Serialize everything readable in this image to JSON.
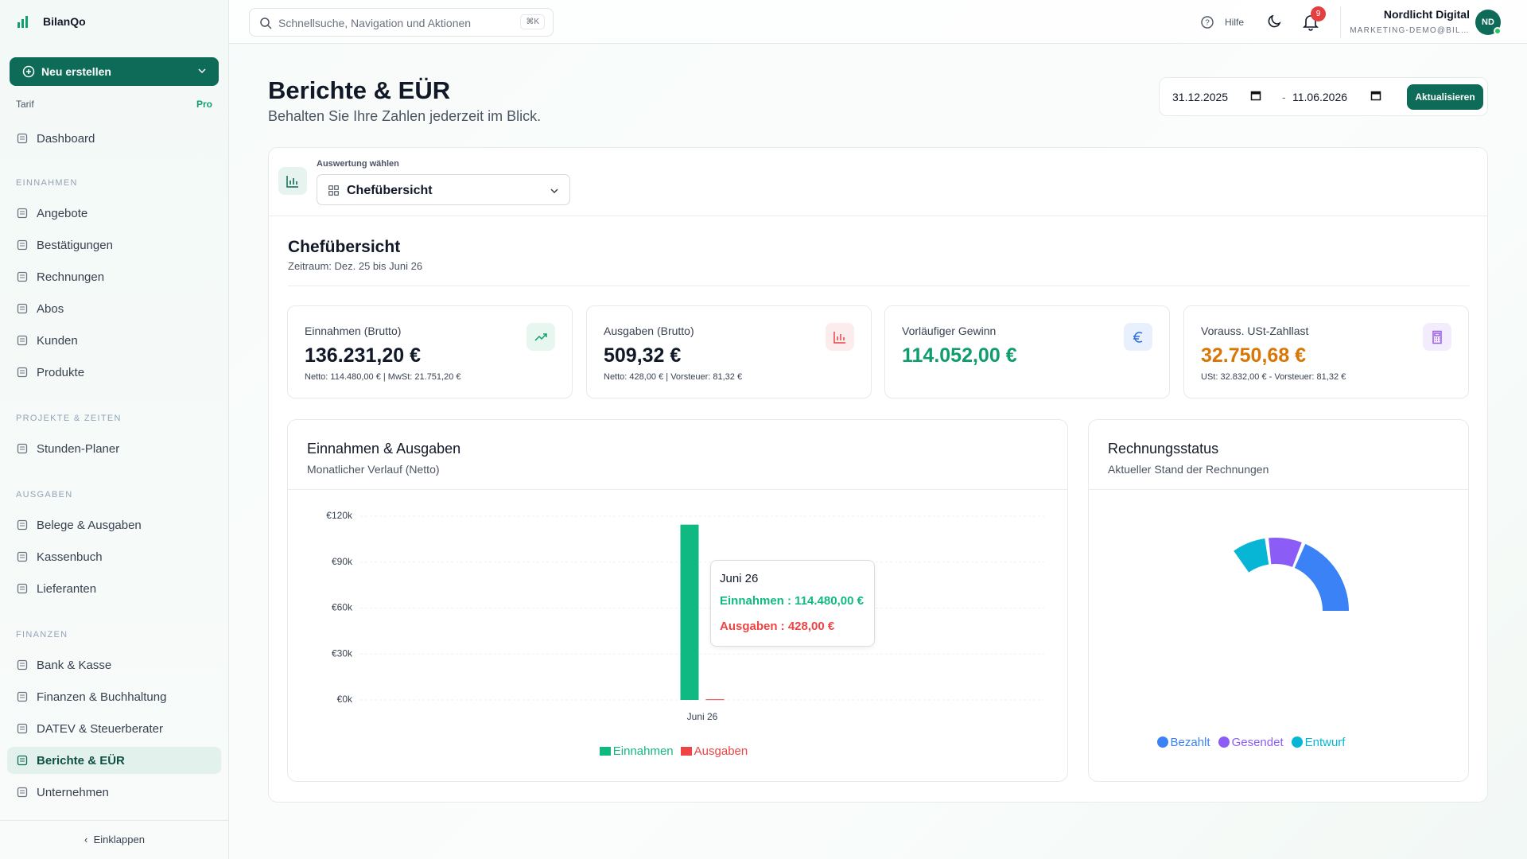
{
  "app": {
    "name": "BilanQo",
    "create_button": "Neu erstellen",
    "plan_label": "Tarif",
    "plan": "Pro",
    "collapse": "Einklappen"
  },
  "nav": {
    "top": [
      {
        "label": "Dashboard"
      }
    ],
    "sections": [
      {
        "title": "EINNAHMEN",
        "items": [
          {
            "label": "Angebote"
          },
          {
            "label": "Bestätigungen"
          },
          {
            "label": "Rechnungen"
          },
          {
            "label": "Abos"
          },
          {
            "label": "Kunden"
          },
          {
            "label": "Produkte"
          }
        ]
      },
      {
        "title": "PROJEKTE & ZEITEN",
        "items": [
          {
            "label": "Stunden-Planer"
          }
        ]
      },
      {
        "title": "AUSGABEN",
        "items": [
          {
            "label": "Belege & Ausgaben"
          },
          {
            "label": "Kassenbuch"
          },
          {
            "label": "Lieferanten"
          }
        ]
      },
      {
        "title": "FINANZEN",
        "items": [
          {
            "label": "Bank & Kasse"
          },
          {
            "label": "Finanzen & Buchhaltung"
          },
          {
            "label": "DATEV & Steuerberater"
          },
          {
            "label": "Berichte & EÜR",
            "active": true
          },
          {
            "label": "Unternehmen"
          }
        ]
      }
    ]
  },
  "header": {
    "search": "Schnellsuche, Navigation und Aktionen",
    "shortcut": "⌘K",
    "help": "Hilfe",
    "notifications": "9",
    "company": "Nordlicht Digital",
    "email": "MARKETING-DEMO@BIL…",
    "avatar": "ND"
  },
  "page": {
    "title": "Berichte & EÜR",
    "subtitle": "Behalten Sie Ihre Zahlen jederzeit im Blick.",
    "date_from": "31.12.2025",
    "date_separator": "-",
    "date_to": "11.06.2026",
    "refresh": "Aktualisieren",
    "selector_label": "Auswertung wählen",
    "selector_value": "Chefübersicht"
  },
  "report": {
    "title": "Chefübersicht",
    "period": "Zeitraum: Dez. 25 bis Juni 26",
    "kpis": [
      {
        "label": "Einnahmen (Brutto)",
        "value": "136.231,20 €",
        "detail": "Netto: 114.480,00 € | MwSt: 21.751,20 €",
        "color": "#111827",
        "icon_bg": "#e7f6ef",
        "icon_color": "#10a06e"
      },
      {
        "label": "Ausgaben (Brutto)",
        "value": "509,32 €",
        "detail": "Netto: 428,00 € | Vorsteuer: 81,32 €",
        "color": "#111827",
        "icon_bg": "#fdecec",
        "icon_color": "#e04848"
      },
      {
        "label": "Vorläufiger Gewinn",
        "value": "114.052,00 €",
        "color": "#0f9d6e",
        "icon_bg": "#e9f0fd",
        "icon_color": "#2f6fe0"
      },
      {
        "label": "Vorauss. USt-Zahllast",
        "value": "32.750,68 €",
        "detail": "USt: 32.832,00 € - Vorsteuer: 81,32 €",
        "color": "#d97706",
        "icon_bg": "#f3ecfc",
        "icon_color": "#9a5ce6"
      }
    ],
    "income_chart": {
      "type": "bar",
      "title": "Einnahmen & Ausgaben",
      "subtitle": "Monatlicher Verlauf (Netto)",
      "categories": [
        "Juni 26"
      ],
      "series": [
        {
          "name": "Einnahmen",
          "color": "#10b981",
          "values": [
            114480
          ]
        },
        {
          "name": "Ausgaben",
          "color": "#ef4444",
          "values": [
            428
          ]
        }
      ],
      "ylim": [
        0,
        120000
      ],
      "yticks": [
        {
          "value": 0,
          "label": "€0k"
        },
        {
          "value": 30000,
          "label": "€30k"
        },
        {
          "value": 60000,
          "label": "€60k"
        },
        {
          "value": 90000,
          "label": "€90k"
        },
        {
          "value": 120000,
          "label": "€120k"
        }
      ],
      "grid": true,
      "tooltip": {
        "title": "Juni 26",
        "lines": [
          "Einnahmen : 114.480,00 €",
          "Ausgaben : 428,00 €"
        ]
      }
    },
    "status_chart": {
      "type": "pie",
      "title": "Rechnungsstatus",
      "subtitle": "Aktueller Stand der Rechnungen",
      "categories": [
        "Bezahlt",
        "Gesendet",
        "Entwurf"
      ],
      "values": [
        5,
        2,
        2
      ],
      "colors": [
        "#3b82f6",
        "#8b5cf6",
        "#06b6d4"
      ]
    }
  }
}
